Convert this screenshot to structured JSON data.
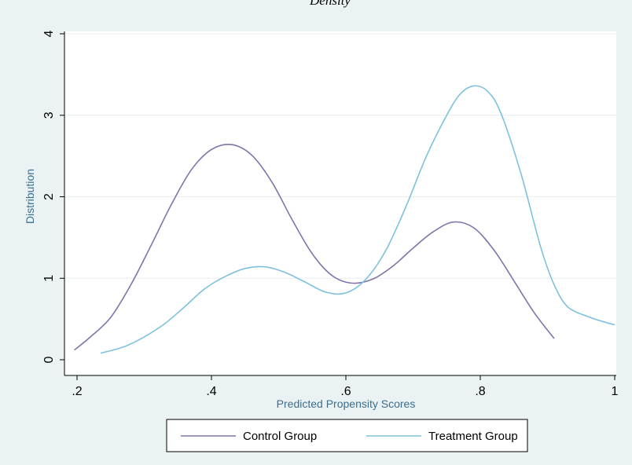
{
  "chart_data": {
    "type": "line",
    "title": "Density",
    "xlabel": "Predicted Propensity Scores",
    "ylabel": "Distribution",
    "xlim": [
      0.2,
      1.0
    ],
    "ylim": [
      0,
      4
    ],
    "x_ticks": [
      {
        "value": 0.2,
        "label": ".2"
      },
      {
        "value": 0.4,
        "label": ".4"
      },
      {
        "value": 0.6,
        "label": ".6"
      },
      {
        "value": 0.8,
        "label": ".8"
      },
      {
        "value": 1.0,
        "label": "1"
      }
    ],
    "y_ticks": [
      {
        "value": 0,
        "label": "0"
      },
      {
        "value": 1,
        "label": "1"
      },
      {
        "value": 2,
        "label": "2"
      },
      {
        "value": 3,
        "label": "3"
      },
      {
        "value": 4,
        "label": "4"
      }
    ],
    "grid": true,
    "legend_position": "bottom",
    "series": [
      {
        "name": "Control Group",
        "color": "#8073ac",
        "points": [
          [
            0.196,
            0.12
          ],
          [
            0.22,
            0.28
          ],
          [
            0.25,
            0.52
          ],
          [
            0.28,
            0.92
          ],
          [
            0.31,
            1.4
          ],
          [
            0.34,
            1.9
          ],
          [
            0.37,
            2.33
          ],
          [
            0.4,
            2.58
          ],
          [
            0.43,
            2.64
          ],
          [
            0.46,
            2.51
          ],
          [
            0.49,
            2.18
          ],
          [
            0.52,
            1.72
          ],
          [
            0.55,
            1.3
          ],
          [
            0.58,
            1.03
          ],
          [
            0.61,
            0.94
          ],
          [
            0.64,
            0.99
          ],
          [
            0.67,
            1.15
          ],
          [
            0.7,
            1.37
          ],
          [
            0.73,
            1.57
          ],
          [
            0.76,
            1.69
          ],
          [
            0.79,
            1.62
          ],
          [
            0.82,
            1.35
          ],
          [
            0.85,
            0.97
          ],
          [
            0.88,
            0.58
          ],
          [
            0.91,
            0.26
          ]
        ]
      },
      {
        "name": "Treatment Group",
        "color": "#7ec1de",
        "points": [
          [
            0.235,
            0.08
          ],
          [
            0.27,
            0.16
          ],
          [
            0.3,
            0.28
          ],
          [
            0.33,
            0.44
          ],
          [
            0.36,
            0.65
          ],
          [
            0.39,
            0.87
          ],
          [
            0.42,
            1.02
          ],
          [
            0.45,
            1.12
          ],
          [
            0.48,
            1.14
          ],
          [
            0.51,
            1.07
          ],
          [
            0.54,
            0.95
          ],
          [
            0.57,
            0.83
          ],
          [
            0.6,
            0.82
          ],
          [
            0.63,
            0.99
          ],
          [
            0.66,
            1.35
          ],
          [
            0.69,
            1.89
          ],
          [
            0.72,
            2.5
          ],
          [
            0.75,
            3.0
          ],
          [
            0.77,
            3.26
          ],
          [
            0.79,
            3.36
          ],
          [
            0.81,
            3.3
          ],
          [
            0.83,
            3.04
          ],
          [
            0.86,
            2.3
          ],
          [
            0.89,
            1.38
          ],
          [
            0.91,
            0.92
          ],
          [
            0.93,
            0.65
          ],
          [
            0.96,
            0.53
          ],
          [
            0.99,
            0.45
          ],
          [
            1.0,
            0.43
          ]
        ]
      }
    ]
  }
}
